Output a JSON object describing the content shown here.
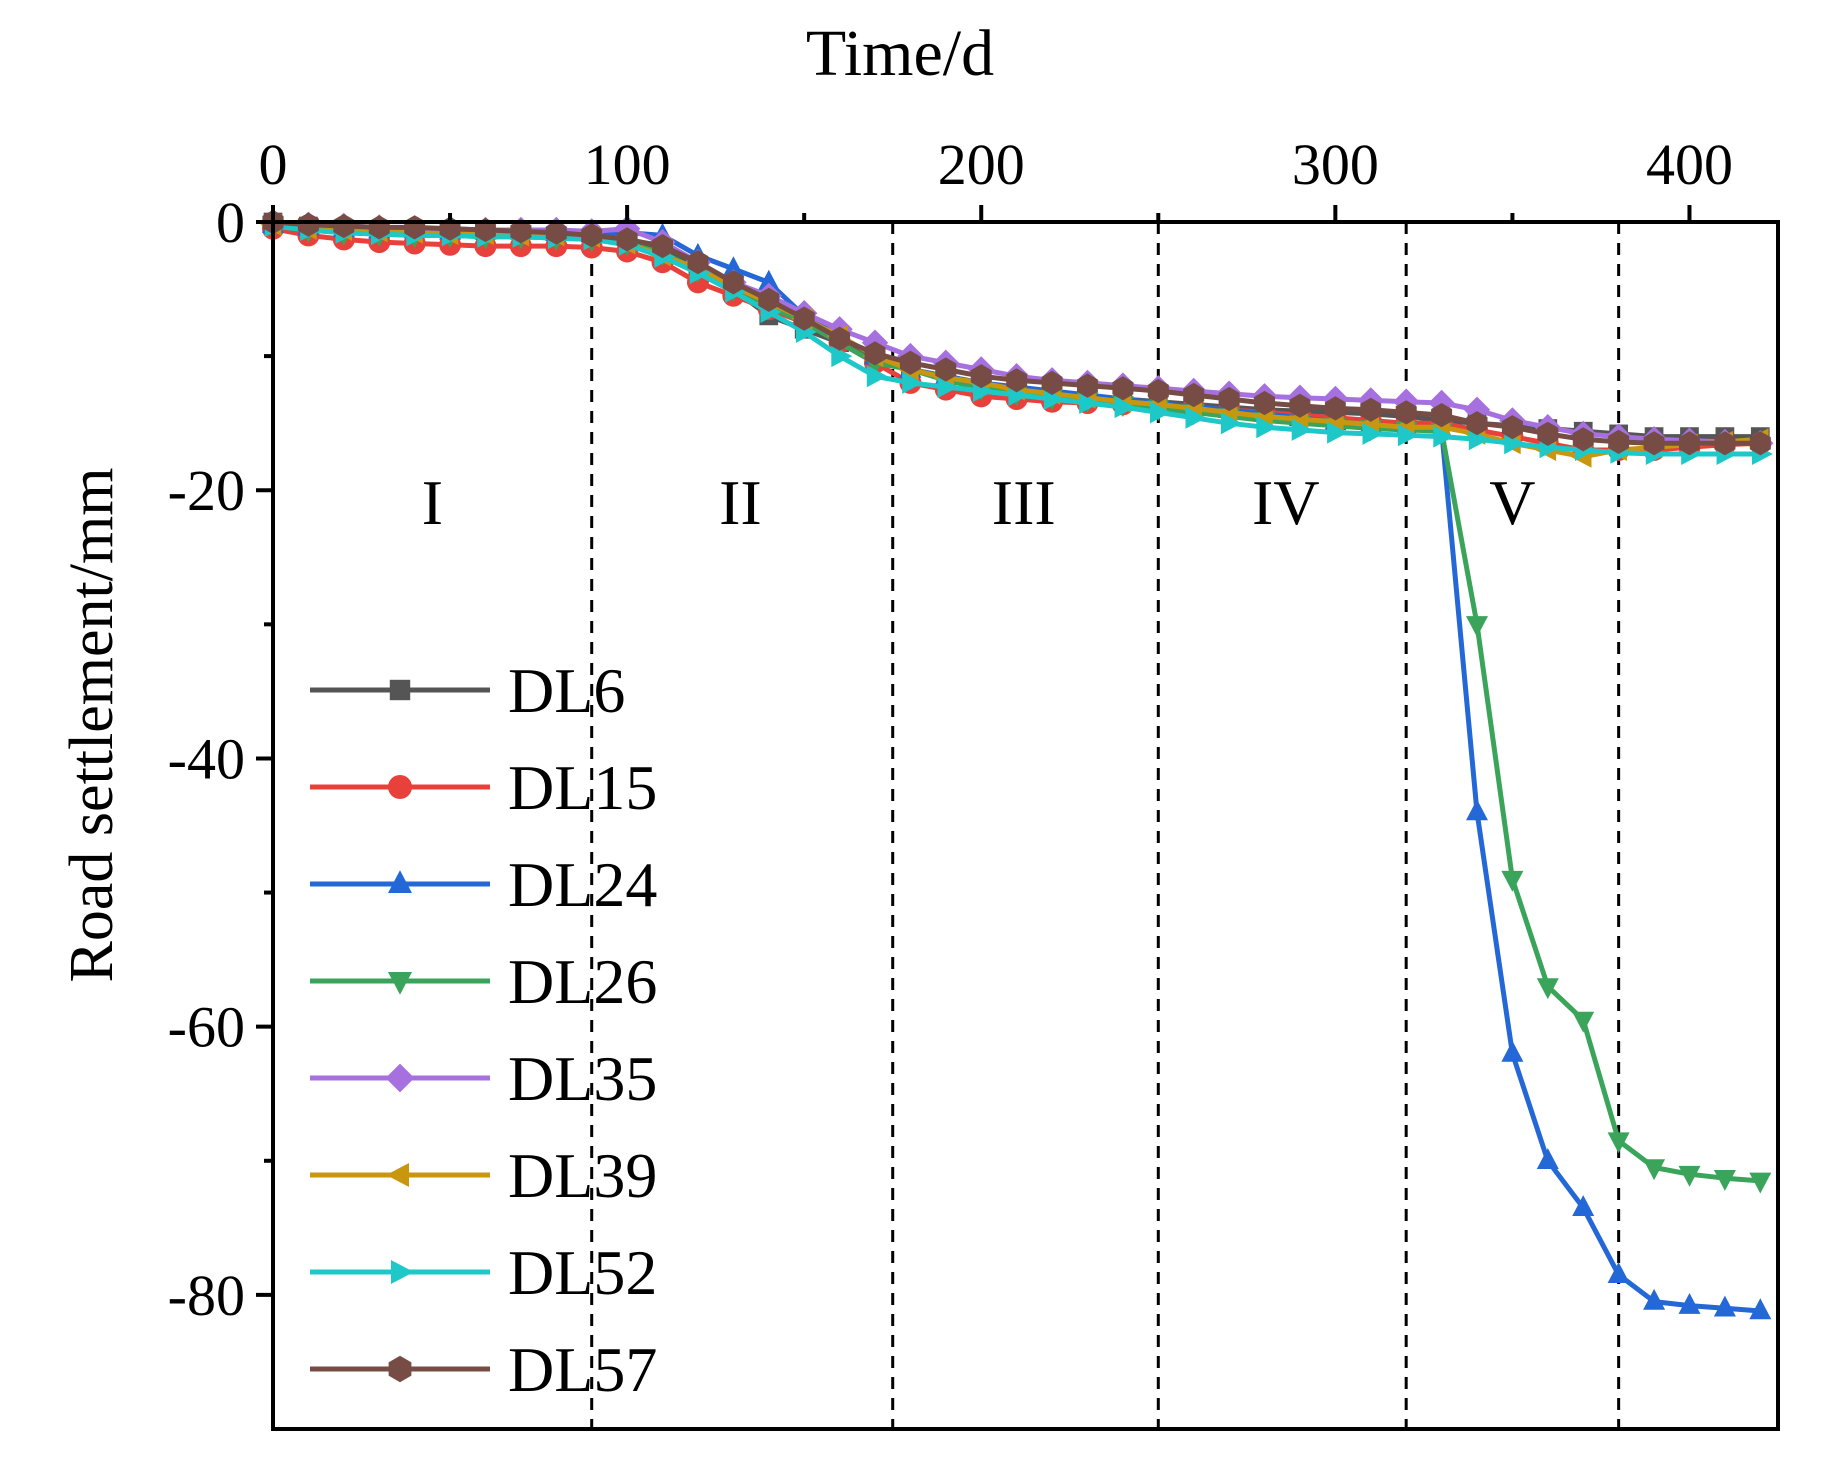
{
  "chart_data": {
    "type": "line",
    "title": "",
    "xlabel": "Time/d",
    "ylabel": "Road settlement/mm",
    "x_axis_position": "top",
    "xlim": [
      0,
      425
    ],
    "ylim": [
      -90,
      0
    ],
    "xticks": [
      0,
      100,
      200,
      300,
      400
    ],
    "yticks": [
      0,
      -20,
      -40,
      -60,
      -80
    ],
    "legend_position": "bottom-left",
    "grid": false,
    "stage_boundaries": [
      90,
      175,
      250,
      320,
      380
    ],
    "stages": [
      {
        "label": "I",
        "x": 45
      },
      {
        "label": "II",
        "x": 132
      },
      {
        "label": "III",
        "x": 212
      },
      {
        "label": "IV",
        "x": 286
      },
      {
        "label": "V",
        "x": 350
      }
    ],
    "series": [
      {
        "name": "DL6",
        "color": "#555555",
        "marker": "square",
        "x": [
          0,
          10,
          20,
          30,
          40,
          50,
          60,
          70,
          80,
          90,
          100,
          110,
          120,
          130,
          140,
          150,
          160,
          170,
          180,
          190,
          200,
          210,
          220,
          230,
          240,
          250,
          260,
          270,
          280,
          290,
          300,
          310,
          320,
          330,
          340,
          350,
          360,
          370,
          380,
          390,
          400,
          410,
          420
        ],
        "y": [
          0,
          -0.3,
          -0.5,
          -0.6,
          -0.7,
          -0.8,
          -0.9,
          -0.9,
          -1.0,
          -1.1,
          -1.4,
          -2.0,
          -3.5,
          -5.0,
          -7.0,
          -8.0,
          -9.0,
          -10.0,
          -11.0,
          -11.5,
          -12.0,
          -12.5,
          -12.8,
          -13.0,
          -13.2,
          -13.4,
          -13.6,
          -13.8,
          -14.0,
          -14.1,
          -14.2,
          -14.3,
          -14.5,
          -14.8,
          -15.0,
          -15.2,
          -15.4,
          -15.6,
          -15.8,
          -16.0,
          -16.0,
          -16.0,
          -16.0
        ]
      },
      {
        "name": "DL15",
        "color": "#e8403a",
        "marker": "circle",
        "x": [
          0,
          10,
          20,
          30,
          40,
          50,
          60,
          70,
          80,
          90,
          100,
          110,
          120,
          130,
          140,
          150,
          160,
          170,
          180,
          190,
          200,
          210,
          220,
          230,
          240,
          250,
          260,
          270,
          280,
          290,
          300,
          310,
          320,
          330,
          340,
          350,
          360,
          370,
          380,
          390,
          400,
          410,
          420
        ],
        "y": [
          -0.5,
          -1.0,
          -1.3,
          -1.5,
          -1.6,
          -1.7,
          -1.8,
          -1.8,
          -1.8,
          -1.9,
          -2.2,
          -3.0,
          -4.5,
          -5.5,
          -6.5,
          -7.5,
          -9.0,
          -10.5,
          -12.0,
          -12.5,
          -13.0,
          -13.2,
          -13.4,
          -13.5,
          -13.6,
          -13.7,
          -13.8,
          -14.0,
          -14.2,
          -14.4,
          -14.6,
          -14.8,
          -15.0,
          -15.0,
          -15.5,
          -16.0,
          -16.5,
          -17.0,
          -17.0,
          -17.0,
          -16.8,
          -16.6,
          -16.5
        ]
      },
      {
        "name": "DL24",
        "color": "#2467d6",
        "marker": "triangle-up",
        "x": [
          0,
          10,
          20,
          30,
          40,
          50,
          60,
          70,
          80,
          90,
          100,
          110,
          120,
          130,
          140,
          150,
          160,
          170,
          180,
          190,
          200,
          210,
          220,
          230,
          240,
          250,
          260,
          270,
          280,
          290,
          300,
          310,
          320,
          330,
          340,
          350,
          360,
          370,
          380,
          390,
          400,
          410,
          420
        ],
        "y": [
          -0.2,
          -0.4,
          -0.5,
          -0.6,
          -0.6,
          -0.7,
          -0.7,
          -0.7,
          -0.8,
          -0.9,
          -0.8,
          -1.0,
          -2.5,
          -3.5,
          -4.5,
          -7.0,
          -8.5,
          -10.0,
          -11.0,
          -11.5,
          -12.0,
          -12.3,
          -12.6,
          -12.9,
          -13.2,
          -13.5,
          -13.8,
          -14.0,
          -14.3,
          -14.6,
          -14.9,
          -15.1,
          -15.3,
          -15.5,
          -44.0,
          -62.0,
          -70.0,
          -73.5,
          -78.5,
          -80.5,
          -80.8,
          -81.0,
          -81.2
        ]
      },
      {
        "name": "DL26",
        "color": "#3aa55a",
        "marker": "triangle-down",
        "x": [
          0,
          10,
          20,
          30,
          40,
          50,
          60,
          70,
          80,
          90,
          100,
          110,
          120,
          130,
          140,
          150,
          160,
          170,
          180,
          190,
          200,
          210,
          220,
          230,
          240,
          250,
          260,
          270,
          280,
          290,
          300,
          310,
          320,
          330,
          340,
          350,
          360,
          370,
          380,
          390,
          400,
          410,
          420
        ],
        "y": [
          -0.3,
          -0.6,
          -0.8,
          -0.9,
          -1.0,
          -1.0,
          -1.1,
          -1.1,
          -1.2,
          -1.3,
          -1.6,
          -2.3,
          -3.6,
          -5.0,
          -6.3,
          -7.5,
          -9.0,
          -10.5,
          -11.0,
          -11.8,
          -12.4,
          -12.8,
          -13.1,
          -13.3,
          -13.6,
          -13.9,
          -14.2,
          -14.5,
          -14.8,
          -15.0,
          -15.2,
          -15.4,
          -15.5,
          -15.6,
          -30.0,
          -49.0,
          -57.0,
          -59.5,
          -68.5,
          -70.5,
          -71.0,
          -71.3,
          -71.5
        ]
      },
      {
        "name": "DL35",
        "color": "#a770e0",
        "marker": "diamond",
        "x": [
          0,
          10,
          20,
          30,
          40,
          50,
          60,
          70,
          80,
          90,
          100,
          110,
          120,
          130,
          140,
          150,
          160,
          170,
          180,
          190,
          200,
          210,
          220,
          230,
          240,
          250,
          260,
          270,
          280,
          290,
          300,
          310,
          320,
          330,
          340,
          350,
          360,
          370,
          380,
          390,
          400,
          410,
          420
        ],
        "y": [
          0,
          -0.2,
          -0.3,
          -0.4,
          -0.5,
          -0.5,
          -0.6,
          -0.6,
          -0.6,
          -0.7,
          -0.5,
          -1.5,
          -3.0,
          -4.5,
          -5.5,
          -6.8,
          -8.0,
          -9.0,
          -10.0,
          -10.5,
          -11.0,
          -11.5,
          -11.8,
          -12.0,
          -12.2,
          -12.4,
          -12.6,
          -12.8,
          -13.0,
          -13.1,
          -13.2,
          -13.3,
          -13.4,
          -13.5,
          -14.0,
          -14.8,
          -15.3,
          -15.8,
          -16.0,
          -16.2,
          -16.3,
          -16.4,
          -16.5
        ]
      },
      {
        "name": "DL39",
        "color": "#c9960f",
        "marker": "triangle-left",
        "x": [
          0,
          10,
          20,
          30,
          40,
          50,
          60,
          70,
          80,
          90,
          100,
          110,
          120,
          130,
          140,
          150,
          160,
          170,
          180,
          190,
          200,
          210,
          220,
          230,
          240,
          250,
          260,
          270,
          280,
          290,
          300,
          310,
          320,
          330,
          340,
          350,
          360,
          370,
          380,
          390,
          400,
          410,
          420
        ],
        "y": [
          -0.2,
          -0.5,
          -0.6,
          -0.7,
          -0.8,
          -0.9,
          -0.9,
          -1.0,
          -1.0,
          -1.1,
          -1.6,
          -2.5,
          -3.5,
          -4.8,
          -6.0,
          -7.2,
          -8.5,
          -10.0,
          -11.0,
          -11.6,
          -12.0,
          -12.5,
          -12.8,
          -13.1,
          -13.4,
          -13.6,
          -13.9,
          -14.2,
          -14.5,
          -14.7,
          -14.9,
          -15.1,
          -15.3,
          -15.3,
          -15.8,
          -16.5,
          -17.0,
          -17.5,
          -17.0,
          -16.8,
          -16.6,
          -16.4,
          -16.2
        ]
      },
      {
        "name": "DL52",
        "color": "#1ec8c8",
        "marker": "triangle-right",
        "x": [
          0,
          10,
          20,
          30,
          40,
          50,
          60,
          70,
          80,
          90,
          100,
          110,
          120,
          130,
          140,
          150,
          160,
          170,
          180,
          190,
          200,
          210,
          220,
          230,
          240,
          250,
          260,
          270,
          280,
          290,
          300,
          310,
          320,
          330,
          340,
          350,
          360,
          370,
          380,
          390,
          400,
          410,
          420
        ],
        "y": [
          -0.3,
          -0.6,
          -0.8,
          -0.9,
          -1.0,
          -1.0,
          -1.1,
          -1.1,
          -1.2,
          -1.3,
          -1.7,
          -2.6,
          -3.8,
          -5.2,
          -6.7,
          -8.2,
          -10.0,
          -11.5,
          -12.0,
          -12.3,
          -12.6,
          -12.9,
          -13.2,
          -13.5,
          -13.8,
          -14.2,
          -14.6,
          -15.0,
          -15.3,
          -15.5,
          -15.7,
          -15.8,
          -15.9,
          -16.0,
          -16.2,
          -16.5,
          -16.8,
          -17.0,
          -17.2,
          -17.3,
          -17.3,
          -17.3,
          -17.3
        ]
      },
      {
        "name": "DL57",
        "color": "#774c44",
        "marker": "hexagon",
        "x": [
          0,
          10,
          20,
          30,
          40,
          50,
          60,
          70,
          80,
          90,
          100,
          110,
          120,
          130,
          140,
          150,
          160,
          170,
          180,
          190,
          200,
          210,
          220,
          230,
          240,
          250,
          260,
          270,
          280,
          290,
          300,
          310,
          320,
          330,
          340,
          350,
          360,
          370,
          380,
          390,
          400,
          410,
          420
        ],
        "y": [
          0,
          -0.2,
          -0.3,
          -0.4,
          -0.4,
          -0.5,
          -0.6,
          -0.7,
          -0.8,
          -1.0,
          -1.3,
          -1.8,
          -3.0,
          -4.5,
          -5.8,
          -7.2,
          -8.7,
          -9.8,
          -10.5,
          -11.0,
          -11.5,
          -11.8,
          -12.0,
          -12.2,
          -12.4,
          -12.6,
          -12.9,
          -13.2,
          -13.5,
          -13.7,
          -13.9,
          -14.0,
          -14.2,
          -14.4,
          -15.0,
          -15.3,
          -15.8,
          -16.2,
          -16.4,
          -16.5,
          -16.5,
          -16.5,
          -16.5
        ]
      }
    ]
  }
}
